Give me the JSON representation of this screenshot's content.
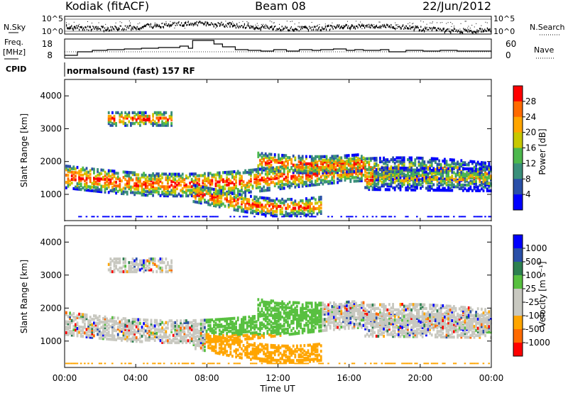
{
  "header": {
    "station": "Kodiak (fitACF)",
    "beam": "Beam 08",
    "date": "22/Jun/2012",
    "cpid_label": "CPID",
    "cpid_value": "normalsound (fast) 157 RF"
  },
  "noise_panel": {
    "left_label": "N.Sky",
    "right_label": "N.Search",
    "ticks": [
      "10^5",
      "10^0"
    ]
  },
  "freq_panel": {
    "left_label_1": "Freq.",
    "left_label_2": "[MHz]",
    "left_ticks": [
      "18",
      "8"
    ],
    "right_label": "Nave",
    "right_ticks": [
      "60",
      "0"
    ]
  },
  "colors": {
    "power_scale": [
      "#0000ff",
      "#2a4fa8",
      "#3a8f7a",
      "#4db84d",
      "#c8c800",
      "#ffa500",
      "#ff6a00",
      "#ff0000"
    ],
    "velocity_scale": [
      "#ff0000",
      "#ff6a00",
      "#ffa500",
      "#c8c8c0",
      "#c8c8c0",
      "#58c040",
      "#2d8050",
      "#2a4fa8",
      "#0000ff"
    ]
  },
  "chart_data": [
    {
      "type": "heatmap",
      "title": "",
      "ylabel": "Slant Range [km]",
      "ylim": [
        200,
        4500
      ],
      "yticks": [
        1000,
        2000,
        3000,
        4000
      ],
      "colorbar": {
        "label": "Power [dB]",
        "ticks": [
          "28",
          "24",
          "20",
          "16",
          "12",
          "8",
          "4"
        ],
        "range": [
          0,
          30
        ]
      }
    },
    {
      "type": "heatmap",
      "title": "",
      "ylabel": "Slant Range [km]",
      "ylim": [
        200,
        4500
      ],
      "yticks": [
        1000,
        2000,
        3000,
        4000
      ],
      "colorbar": {
        "label": "Velocity [m s⁻¹]",
        "ticks": [
          "1000",
          "500",
          "100",
          "25",
          "-25",
          "-100",
          "-500",
          "-1000"
        ]
      }
    }
  ],
  "time_axis": {
    "label": "Time UT",
    "ticks": [
      "00:00",
      "04:00",
      "08:00",
      "12:00",
      "16:00",
      "20:00",
      "00:00"
    ]
  }
}
